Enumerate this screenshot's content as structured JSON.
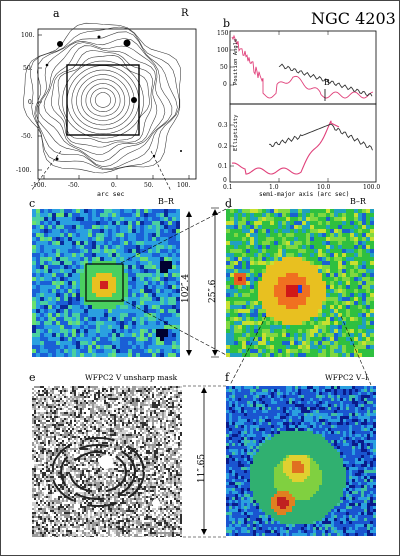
{
  "figure": {
    "title": "NGC 4203",
    "panel_a": {
      "letter": "a",
      "filter": "R",
      "xlabel": "arc sec",
      "xticks": [
        "-100.",
        "-50.",
        "0.",
        "50.",
        "100."
      ],
      "yticks": [
        "100.",
        "50.",
        "0.",
        "-50.",
        "-100."
      ]
    },
    "panel_b": {
      "letter": "b",
      "marker": "B",
      "xlabel": "semi-major axis (arc sec)",
      "top_ylabel": "Position Angle",
      "bottom_ylabel": "Ellipticity",
      "top_yticks": [
        "150",
        "100",
        "50",
        "0"
      ],
      "bottom_yticks": [
        "0.3",
        "0.2",
        "0.1",
        "0"
      ],
      "xticks": [
        "0.1",
        "1.0",
        "10.0",
        "100.0"
      ]
    },
    "panel_c": {
      "letter": "c",
      "label": "B–R",
      "scale": "102″.4"
    },
    "panel_d": {
      "letter": "d",
      "label": "B–R",
      "scale": "25″.6"
    },
    "panel_e": {
      "letter": "e",
      "label": "WFPC2 V unsharp mask"
    },
    "panel_f": {
      "letter": "f",
      "label": "WFPC2 V–I",
      "scale": "11″.65"
    },
    "colors": {
      "pa_dark": "#333333",
      "pa_pink": "#e0407a",
      "frame": "#000000"
    }
  }
}
